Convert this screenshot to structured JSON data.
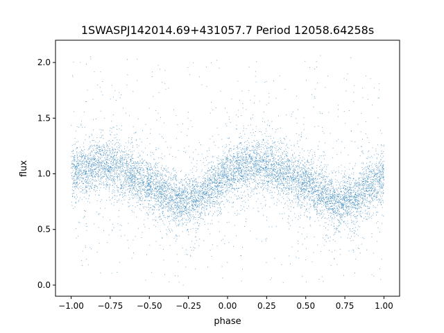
{
  "chart_data": {
    "type": "scatter",
    "title": "1SWASPJ142014.69+431057.7 Period 12058.64258s",
    "xlabel": "phase",
    "ylabel": "flux",
    "xlim": [
      -1.1,
      1.1
    ],
    "ylim": [
      -0.1,
      2.2
    ],
    "xticks": [
      {
        "value": -1.0,
        "label": "−1.00"
      },
      {
        "value": -0.75,
        "label": "−0.75"
      },
      {
        "value": -0.5,
        "label": "−0.50"
      },
      {
        "value": -0.25,
        "label": "−0.25"
      },
      {
        "value": 0.0,
        "label": "0.00"
      },
      {
        "value": 0.25,
        "label": "0.25"
      },
      {
        "value": 0.5,
        "label": "0.50"
      },
      {
        "value": 0.75,
        "label": "0.75"
      },
      {
        "value": 1.0,
        "label": "1.00"
      }
    ],
    "yticks": [
      {
        "value": 0.0,
        "label": "0.0"
      },
      {
        "value": 0.5,
        "label": "0.5"
      },
      {
        "value": 1.0,
        "label": "1.0"
      },
      {
        "value": 1.5,
        "label": "1.5"
      },
      {
        "value": 2.0,
        "label": "2.0"
      }
    ],
    "series_color": "#1f77b4",
    "phase_range": [
      -1.0,
      1.0
    ],
    "light_curve_profile": [
      {
        "phase": -1.0,
        "flux": 1.0
      },
      {
        "phase": -0.9,
        "flux": 1.05
      },
      {
        "phase": -0.8,
        "flux": 1.09
      },
      {
        "phase": -0.7,
        "flux": 1.05
      },
      {
        "phase": -0.6,
        "flux": 0.98
      },
      {
        "phase": -0.5,
        "flux": 0.91
      },
      {
        "phase": -0.4,
        "flux": 0.82
      },
      {
        "phase": -0.3,
        "flux": 0.74
      },
      {
        "phase": -0.2,
        "flux": 0.78
      },
      {
        "phase": -0.1,
        "flux": 0.88
      },
      {
        "phase": 0.0,
        "flux": 1.0
      },
      {
        "phase": 0.1,
        "flux": 1.05
      },
      {
        "phase": 0.2,
        "flux": 1.09
      },
      {
        "phase": 0.3,
        "flux": 1.05
      },
      {
        "phase": 0.4,
        "flux": 0.98
      },
      {
        "phase": 0.5,
        "flux": 0.91
      },
      {
        "phase": 0.6,
        "flux": 0.82
      },
      {
        "phase": 0.7,
        "flux": 0.74
      },
      {
        "phase": 0.8,
        "flux": 0.78
      },
      {
        "phase": 0.9,
        "flux": 0.88
      },
      {
        "phase": 1.0,
        "flux": 0.97
      }
    ]
  }
}
